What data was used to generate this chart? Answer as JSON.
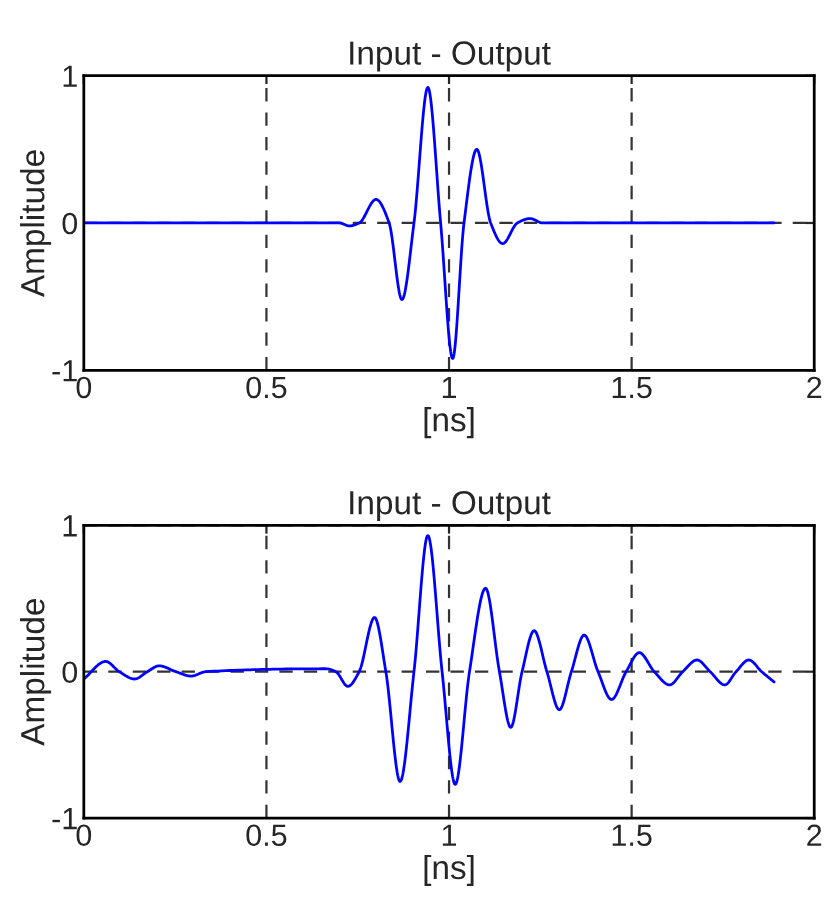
{
  "chart_data": [
    {
      "type": "line",
      "title": "Input - Output",
      "xlabel": "[ns]",
      "ylabel": "Amplitude",
      "xlim": [
        0,
        2
      ],
      "xticks": [
        0,
        0.5,
        1,
        1.5,
        2
      ],
      "ylim": [
        -1,
        1
      ],
      "yticks": [
        -1,
        0,
        1
      ],
      "grid": true,
      "series": [
        {
          "color": "#0000ff",
          "x": [
            0,
            0.7,
            0.727,
            0.754,
            0.8,
            0.836,
            0.871,
            0.904,
            0.942,
            0.977,
            1.01,
            1.041,
            1.076,
            1.114,
            1.147,
            1.187,
            1.222,
            1.257,
            1.89
          ],
          "values": [
            0,
            0,
            -0.02,
            0,
            0.16,
            0,
            -0.52,
            0,
            0.92,
            0,
            -0.92,
            0,
            0.5,
            0,
            -0.14,
            0,
            0.03,
            0,
            0
          ]
        }
      ]
    },
    {
      "type": "line",
      "title": "Input - Output",
      "xlabel": "[ns]",
      "ylabel": "Amplitude",
      "xlim": [
        0,
        2
      ],
      "xticks": [
        0,
        0.5,
        1,
        1.5,
        2
      ],
      "ylim": [
        -1,
        1
      ],
      "yticks": [
        -1,
        0,
        1
      ],
      "grid": true,
      "series": [
        {
          "color": "#0000ff",
          "x": [
            0,
            0.06,
            0.097,
            0.139,
            0.174,
            0.206,
            0.252,
            0.294,
            0.334,
            0.663,
            0.69,
            0.723,
            0.754,
            0.796,
            0.827,
            0.866,
            0.904,
            0.942,
            0.981,
            1.017,
            1.056,
            1.1,
            1.138,
            1.169,
            1.2,
            1.233,
            1.268,
            1.302,
            1.335,
            1.37,
            1.408,
            1.445,
            1.485,
            1.521,
            1.562,
            1.604,
            1.64,
            1.679,
            1.715,
            1.755,
            1.786,
            1.821,
            1.856,
            1.89
          ],
          "values": [
            -0.05,
            0.07,
            0,
            -0.05,
            0,
            0.04,
            0,
            -0.03,
            0,
            0.02,
            0,
            -0.1,
            0,
            0.37,
            0,
            -0.75,
            0,
            0.93,
            0,
            -0.77,
            0,
            0.57,
            0,
            -0.38,
            0,
            0.28,
            0,
            -0.26,
            0,
            0.25,
            0,
            -0.19,
            0,
            0.13,
            0,
            -0.09,
            0,
            0.08,
            0,
            -0.09,
            0,
            0.08,
            0,
            -0.07
          ]
        }
      ]
    }
  ]
}
